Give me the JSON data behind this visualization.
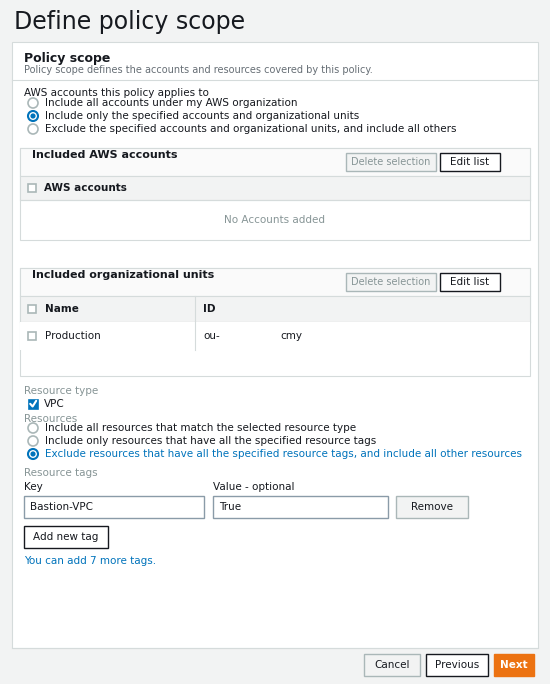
{
  "title": "Define policy scope",
  "bg_color": "#f2f3f3",
  "card_bg": "#ffffff",
  "card_border": "#d5dbdb",
  "section_title": "Policy scope",
  "section_subtitle": "Policy scope defines the accounts and resources covered by this policy.",
  "aws_accounts_label": "AWS accounts this policy applies to",
  "radio_options": [
    "Include all accounts under my AWS organization",
    "Include only the specified accounts and organizational units",
    "Exclude the specified accounts and organizational units, and include all others"
  ],
  "radio_selected": 1,
  "table1_title": "Included AWS accounts",
  "table1_col": "AWS accounts",
  "table1_empty": "No Accounts added",
  "table2_title": "Included organizational units",
  "table2_cols": [
    "Name",
    "ID"
  ],
  "table2_row": [
    "Production",
    "ou-",
    "cmy"
  ],
  "resource_type_label": "Resource type",
  "resource_type_checked": "VPC",
  "resources_label": "Resources",
  "resource_radio_options": [
    "Include all resources that match the selected resource type",
    "Include only resources that have all the specified resource tags",
    "Exclude resources that have all the specified resource tags, and include all other resources"
  ],
  "resource_radio_selected": 2,
  "resource_tags_label": "Resource tags",
  "key_label": "Key",
  "value_label": "Value - optional",
  "key_value": "Bastion-VPC",
  "value_value": "True",
  "remove_btn": "Remove",
  "add_tag_btn": "Add new tag",
  "add_tag_note": "You can add 7 more tags.",
  "btn_cancel": "Cancel",
  "btn_previous": "Previous",
  "btn_next": "Next",
  "orange": "#ec7211",
  "blue_radio": "#0073bb",
  "blue_text": "#0073bb",
  "gray_text": "#879596",
  "dark_text": "#16191f",
  "medium_text": "#414750",
  "light_gray": "#f2f3f3",
  "border_gray": "#aab7b8",
  "checked_blue": "#0073bb",
  "table_header_bg": "#fafafa"
}
